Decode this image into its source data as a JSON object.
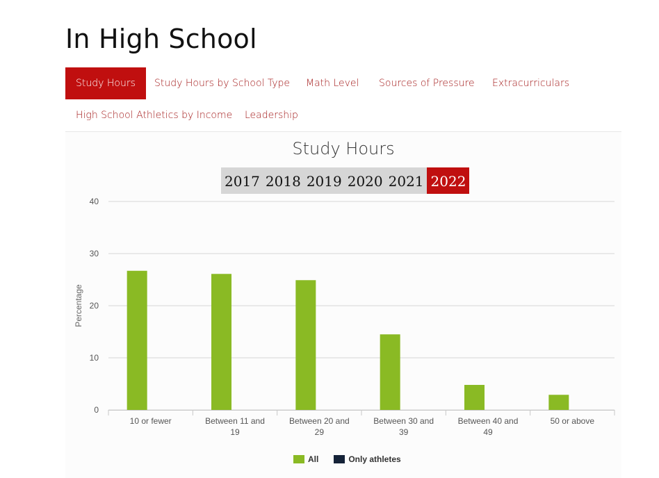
{
  "page": {
    "title": "In High School"
  },
  "tabs": [
    {
      "label": "Study Hours",
      "active": true
    },
    {
      "label": "Study Hours by School Type",
      "active": false
    },
    {
      "label": "Math Level",
      "active": false
    },
    {
      "label": "Sources of Pressure",
      "active": false
    },
    {
      "label": "Extracurriculars",
      "active": false
    },
    {
      "label": "High School Athletics by Income",
      "active": false
    },
    {
      "label": "Leadership",
      "active": false
    }
  ],
  "years": [
    {
      "label": "2017",
      "active": false
    },
    {
      "label": "2018",
      "active": false
    },
    {
      "label": "2019",
      "active": false
    },
    {
      "label": "2020",
      "active": false
    },
    {
      "label": "2021",
      "active": false
    },
    {
      "label": "2022",
      "active": true
    }
  ],
  "colors": {
    "accent": "#c00f0f",
    "all": "#8aba24",
    "athletes": "#152238",
    "grid": "#d6d6d6"
  },
  "chart_data": {
    "type": "bar",
    "title": "Study Hours",
    "ylabel": "Percentage",
    "xlabel": "",
    "ylim": [
      0,
      40
    ],
    "yticks": [
      0,
      10,
      20,
      30,
      40
    ],
    "grid": true,
    "legend": "bottom-center",
    "categories": [
      [
        "10 or fewer"
      ],
      [
        "Between 11 and",
        "19"
      ],
      [
        "Between 20 and",
        "29"
      ],
      [
        "Between 30 and",
        "39"
      ],
      [
        "Between 40 and",
        "49"
      ],
      [
        "50 or above"
      ]
    ],
    "series": [
      {
        "name": "All",
        "color": "#8aba24",
        "values": [
          26.7,
          26.1,
          24.9,
          14.5,
          4.8,
          2.9
        ]
      },
      {
        "name": "Only athletes",
        "color": "#152238",
        "values": [
          null,
          null,
          null,
          null,
          null,
          null
        ]
      }
    ]
  }
}
